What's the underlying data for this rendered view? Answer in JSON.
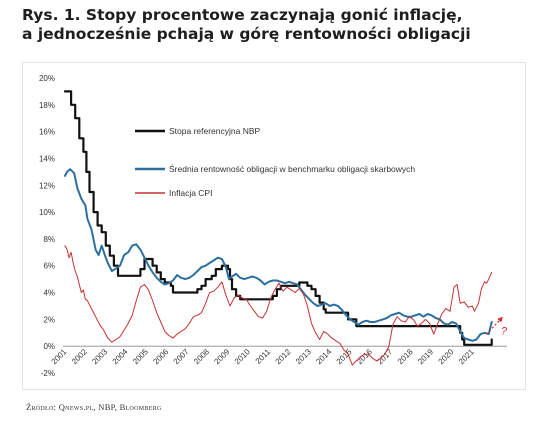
{
  "figure": {
    "title_line1": "Rys. 1. Stopy procentowe zaczynają gonić inflację,",
    "title_line2": "a jednocześnie pchają w górę rentowności obligacji",
    "source": "Źródło: Qnews.pl, NBP, Bloomberg"
  },
  "chart_data": {
    "type": "line",
    "title": "Rys. 1. Stopy procentowe zaczynają gonić inflację, a jednocześnie pchają w górę rentowności obligacji",
    "xlabel": "",
    "ylabel": "",
    "xlim": [
      2000.8,
      2022.6
    ],
    "ylim": [
      -2,
      20
    ],
    "yticks": [
      -2,
      0,
      2,
      4,
      6,
      8,
      10,
      12,
      14,
      16,
      18,
      20
    ],
    "ytick_labels": [
      "-2%",
      "0%",
      "2%",
      "4%",
      "6%",
      "8%",
      "10%",
      "12%",
      "14%",
      "16%",
      "18%",
      "20%"
    ],
    "xticks": [
      2001,
      2002,
      2003,
      2004,
      2005,
      2006,
      2007,
      2008,
      2009,
      2010,
      2011,
      2012,
      2013,
      2014,
      2015,
      2016,
      2017,
      2018,
      2019,
      2020,
      2021
    ],
    "xtick_labels": [
      "2001",
      "2002",
      "2003",
      "2004",
      "2005",
      "2006",
      "2007",
      "2008",
      "2009",
      "2010",
      "2011",
      "2012",
      "2013",
      "2014",
      "2015",
      "2016",
      "2017",
      "2018",
      "2019",
      "2020",
      "2021"
    ],
    "grid": false,
    "legend_position": "upper-middle",
    "annotation": {
      "text": "?",
      "color": "#d62b2b",
      "arrow_from": [
        2021.6,
        0.9
      ],
      "arrow_to": [
        2022.4,
        2.2
      ]
    },
    "series": [
      {
        "name": "Stopa referencyjna NBP",
        "color": "#111111",
        "width": 2.2,
        "step": true,
        "points": [
          [
            2000.9,
            19
          ],
          [
            2001.1,
            19
          ],
          [
            2001.2,
            18
          ],
          [
            2001.4,
            17
          ],
          [
            2001.6,
            15.5
          ],
          [
            2001.8,
            14.5
          ],
          [
            2001.95,
            13
          ],
          [
            2002.1,
            11.5
          ],
          [
            2002.3,
            10
          ],
          [
            2002.5,
            9
          ],
          [
            2002.7,
            8.5
          ],
          [
            2002.9,
            7.5
          ],
          [
            2003.1,
            6.75
          ],
          [
            2003.3,
            6
          ],
          [
            2003.5,
            5.25
          ],
          [
            2004.5,
            5.25
          ],
          [
            2004.6,
            5.75
          ],
          [
            2004.8,
            6.5
          ],
          [
            2005.2,
            6
          ],
          [
            2005.4,
            5.5
          ],
          [
            2005.6,
            5
          ],
          [
            2005.8,
            4.75
          ],
          [
            2006.1,
            4.5
          ],
          [
            2006.2,
            4
          ],
          [
            2007.3,
            4
          ],
          [
            2007.4,
            4.25
          ],
          [
            2007.6,
            4.5
          ],
          [
            2007.8,
            5
          ],
          [
            2008.1,
            5.25
          ],
          [
            2008.3,
            5.75
          ],
          [
            2008.6,
            6
          ],
          [
            2008.9,
            5.75
          ],
          [
            2009.0,
            5
          ],
          [
            2009.1,
            4.25
          ],
          [
            2009.3,
            3.75
          ],
          [
            2009.5,
            3.5
          ],
          [
            2011.0,
            3.5
          ],
          [
            2011.1,
            3.75
          ],
          [
            2011.3,
            4.25
          ],
          [
            2011.5,
            4.5
          ],
          [
            2012.4,
            4.75
          ],
          [
            2012.8,
            4.5
          ],
          [
            2013.0,
            4.25
          ],
          [
            2013.2,
            3.75
          ],
          [
            2013.4,
            3.25
          ],
          [
            2013.6,
            2.75
          ],
          [
            2013.7,
            2.5
          ],
          [
            2014.8,
            2.0
          ],
          [
            2015.2,
            1.5
          ],
          [
            2020.2,
            1.5
          ],
          [
            2020.3,
            1.0
          ],
          [
            2020.4,
            0.5
          ],
          [
            2020.5,
            0.1
          ],
          [
            2021.8,
            0.1
          ],
          [
            2021.85,
            0.5
          ]
        ]
      },
      {
        "name": "Średnia rentowność obligacji w benchmarku obligacji skarbowych",
        "color": "#2e6f9e",
        "width": 2.0,
        "step": false,
        "points": [
          [
            2000.9,
            12.7
          ],
          [
            2001.0,
            13.0
          ],
          [
            2001.15,
            13.2
          ],
          [
            2001.35,
            12.9
          ],
          [
            2001.5,
            11.8
          ],
          [
            2001.7,
            11.0
          ],
          [
            2001.9,
            10.5
          ],
          [
            2002.0,
            9.5
          ],
          [
            2002.2,
            8.7
          ],
          [
            2002.4,
            7.2
          ],
          [
            2002.55,
            6.8
          ],
          [
            2002.7,
            7.5
          ],
          [
            2002.85,
            6.8
          ],
          [
            2003.0,
            6.2
          ],
          [
            2003.2,
            5.6
          ],
          [
            2003.4,
            5.8
          ],
          [
            2003.6,
            6.0
          ],
          [
            2003.8,
            6.8
          ],
          [
            2004.0,
            7.0
          ],
          [
            2004.2,
            7.5
          ],
          [
            2004.4,
            7.6
          ],
          [
            2004.6,
            7.2
          ],
          [
            2004.8,
            6.6
          ],
          [
            2005.0,
            6.0
          ],
          [
            2005.2,
            5.5
          ],
          [
            2005.4,
            5.1
          ],
          [
            2005.6,
            4.8
          ],
          [
            2005.8,
            4.6
          ],
          [
            2006.0,
            4.7
          ],
          [
            2006.2,
            4.9
          ],
          [
            2006.4,
            5.3
          ],
          [
            2006.6,
            5.1
          ],
          [
            2006.8,
            5.0
          ],
          [
            2007.0,
            5.1
          ],
          [
            2007.2,
            5.3
          ],
          [
            2007.4,
            5.6
          ],
          [
            2007.6,
            5.9
          ],
          [
            2007.8,
            6.0
          ],
          [
            2008.0,
            6.2
          ],
          [
            2008.2,
            6.4
          ],
          [
            2008.4,
            6.6
          ],
          [
            2008.6,
            6.5
          ],
          [
            2008.8,
            5.9
          ],
          [
            2008.95,
            5.0
          ],
          [
            2009.1,
            5.2
          ],
          [
            2009.3,
            5.4
          ],
          [
            2009.5,
            5.1
          ],
          [
            2009.7,
            5.0
          ],
          [
            2009.9,
            5.1
          ],
          [
            2010.1,
            5.2
          ],
          [
            2010.3,
            5.1
          ],
          [
            2010.5,
            4.9
          ],
          [
            2010.7,
            4.6
          ],
          [
            2010.9,
            4.8
          ],
          [
            2011.1,
            4.9
          ],
          [
            2011.3,
            4.9
          ],
          [
            2011.5,
            4.8
          ],
          [
            2011.7,
            4.7
          ],
          [
            2011.9,
            4.8
          ],
          [
            2012.1,
            4.7
          ],
          [
            2012.3,
            4.6
          ],
          [
            2012.5,
            4.2
          ],
          [
            2012.7,
            3.8
          ],
          [
            2012.9,
            3.5
          ],
          [
            2013.1,
            3.2
          ],
          [
            2013.3,
            3.0
          ],
          [
            2013.5,
            3.1
          ],
          [
            2013.7,
            3.2
          ],
          [
            2013.9,
            3.0
          ],
          [
            2014.1,
            3.1
          ],
          [
            2014.3,
            3.0
          ],
          [
            2014.5,
            2.7
          ],
          [
            2014.7,
            2.3
          ],
          [
            2014.9,
            2.0
          ],
          [
            2015.1,
            1.8
          ],
          [
            2015.3,
            1.6
          ],
          [
            2015.5,
            1.8
          ],
          [
            2015.7,
            1.9
          ],
          [
            2015.9,
            1.8
          ],
          [
            2016.1,
            1.8
          ],
          [
            2016.3,
            1.9
          ],
          [
            2016.5,
            2.0
          ],
          [
            2016.7,
            2.1
          ],
          [
            2016.9,
            2.3
          ],
          [
            2017.1,
            2.4
          ],
          [
            2017.3,
            2.5
          ],
          [
            2017.5,
            2.3
          ],
          [
            2017.7,
            2.2
          ],
          [
            2017.9,
            2.2
          ],
          [
            2018.1,
            2.3
          ],
          [
            2018.3,
            2.4
          ],
          [
            2018.5,
            2.2
          ],
          [
            2018.7,
            2.4
          ],
          [
            2018.9,
            2.3
          ],
          [
            2019.1,
            2.1
          ],
          [
            2019.3,
            2.0
          ],
          [
            2019.5,
            1.7
          ],
          [
            2019.7,
            1.6
          ],
          [
            2019.9,
            1.8
          ],
          [
            2020.1,
            1.7
          ],
          [
            2020.3,
            1.1
          ],
          [
            2020.5,
            0.6
          ],
          [
            2020.7,
            0.5
          ],
          [
            2020.9,
            0.4
          ],
          [
            2021.1,
            0.5
          ],
          [
            2021.3,
            0.9
          ],
          [
            2021.5,
            1.0
          ],
          [
            2021.7,
            0.9
          ],
          [
            2021.85,
            1.8
          ]
        ]
      },
      {
        "name": "Inflacja CPI",
        "color": "#c63232",
        "width": 1.0,
        "step": false,
        "points": [
          [
            2000.9,
            7.5
          ],
          [
            2001.0,
            7.2
          ],
          [
            2001.1,
            6.6
          ],
          [
            2001.2,
            7.0
          ],
          [
            2001.3,
            6.2
          ],
          [
            2001.4,
            5.6
          ],
          [
            2001.5,
            5.2
          ],
          [
            2001.6,
            4.6
          ],
          [
            2001.7,
            4.0
          ],
          [
            2001.8,
            4.2
          ],
          [
            2001.9,
            3.5
          ],
          [
            2002.0,
            3.4
          ],
          [
            2002.2,
            2.8
          ],
          [
            2002.4,
            2.2
          ],
          [
            2002.6,
            1.6
          ],
          [
            2002.8,
            1.2
          ],
          [
            2003.0,
            0.6
          ],
          [
            2003.2,
            0.3
          ],
          [
            2003.4,
            0.5
          ],
          [
            2003.6,
            0.7
          ],
          [
            2003.8,
            1.2
          ],
          [
            2004.0,
            1.7
          ],
          [
            2004.2,
            2.3
          ],
          [
            2004.4,
            3.4
          ],
          [
            2004.6,
            4.4
          ],
          [
            2004.8,
            4.6
          ],
          [
            2005.0,
            4.2
          ],
          [
            2005.2,
            3.4
          ],
          [
            2005.4,
            2.5
          ],
          [
            2005.6,
            1.8
          ],
          [
            2005.8,
            1.1
          ],
          [
            2006.0,
            0.8
          ],
          [
            2006.2,
            0.6
          ],
          [
            2006.4,
            0.9
          ],
          [
            2006.6,
            1.1
          ],
          [
            2006.8,
            1.3
          ],
          [
            2007.0,
            1.7
          ],
          [
            2007.2,
            2.2
          ],
          [
            2007.4,
            2.3
          ],
          [
            2007.6,
            2.5
          ],
          [
            2007.8,
            3.2
          ],
          [
            2008.0,
            4.0
          ],
          [
            2008.2,
            4.1
          ],
          [
            2008.4,
            4.4
          ],
          [
            2008.6,
            4.8
          ],
          [
            2008.8,
            3.8
          ],
          [
            2009.0,
            3.0
          ],
          [
            2009.2,
            3.6
          ],
          [
            2009.4,
            3.8
          ],
          [
            2009.6,
            3.6
          ],
          [
            2009.8,
            3.5
          ],
          [
            2010.0,
            3.0
          ],
          [
            2010.2,
            2.6
          ],
          [
            2010.4,
            2.2
          ],
          [
            2010.6,
            2.1
          ],
          [
            2010.8,
            2.6
          ],
          [
            2011.0,
            3.6
          ],
          [
            2011.2,
            4.2
          ],
          [
            2011.4,
            4.7
          ],
          [
            2011.6,
            4.1
          ],
          [
            2011.8,
            4.4
          ],
          [
            2012.0,
            4.2
          ],
          [
            2012.2,
            4.0
          ],
          [
            2012.4,
            4.3
          ],
          [
            2012.6,
            3.9
          ],
          [
            2012.8,
            3.0
          ],
          [
            2013.0,
            1.7
          ],
          [
            2013.2,
            1.0
          ],
          [
            2013.4,
            0.5
          ],
          [
            2013.6,
            1.1
          ],
          [
            2013.8,
            0.9
          ],
          [
            2014.0,
            0.6
          ],
          [
            2014.2,
            0.4
          ],
          [
            2014.4,
            0.2
          ],
          [
            2014.6,
            -0.3
          ],
          [
            2014.8,
            -0.6
          ],
          [
            2015.0,
            -1.4
          ],
          [
            2015.2,
            -1.1
          ],
          [
            2015.4,
            -0.8
          ],
          [
            2015.6,
            -0.6
          ],
          [
            2015.8,
            -0.6
          ],
          [
            2016.0,
            -0.9
          ],
          [
            2016.2,
            -1.1
          ],
          [
            2016.4,
            -0.9
          ],
          [
            2016.6,
            -0.6
          ],
          [
            2016.8,
            0.0
          ],
          [
            2017.0,
            1.6
          ],
          [
            2017.2,
            2.2
          ],
          [
            2017.4,
            1.9
          ],
          [
            2017.6,
            1.8
          ],
          [
            2017.8,
            2.2
          ],
          [
            2018.0,
            2.0
          ],
          [
            2018.2,
            1.5
          ],
          [
            2018.4,
            1.7
          ],
          [
            2018.6,
            2.0
          ],
          [
            2018.8,
            1.7
          ],
          [
            2019.0,
            0.9
          ],
          [
            2019.2,
            1.7
          ],
          [
            2019.4,
            2.4
          ],
          [
            2019.6,
            2.8
          ],
          [
            2019.8,
            2.6
          ],
          [
            2020.0,
            4.4
          ],
          [
            2020.15,
            4.6
          ],
          [
            2020.3,
            3.2
          ],
          [
            2020.5,
            3.3
          ],
          [
            2020.7,
            2.9
          ],
          [
            2020.9,
            3.0
          ],
          [
            2021.0,
            2.6
          ],
          [
            2021.2,
            3.2
          ],
          [
            2021.35,
            4.3
          ],
          [
            2021.5,
            4.8
          ],
          [
            2021.6,
            4.7
          ],
          [
            2021.7,
            5.0
          ],
          [
            2021.85,
            5.5
          ]
        ]
      }
    ]
  }
}
